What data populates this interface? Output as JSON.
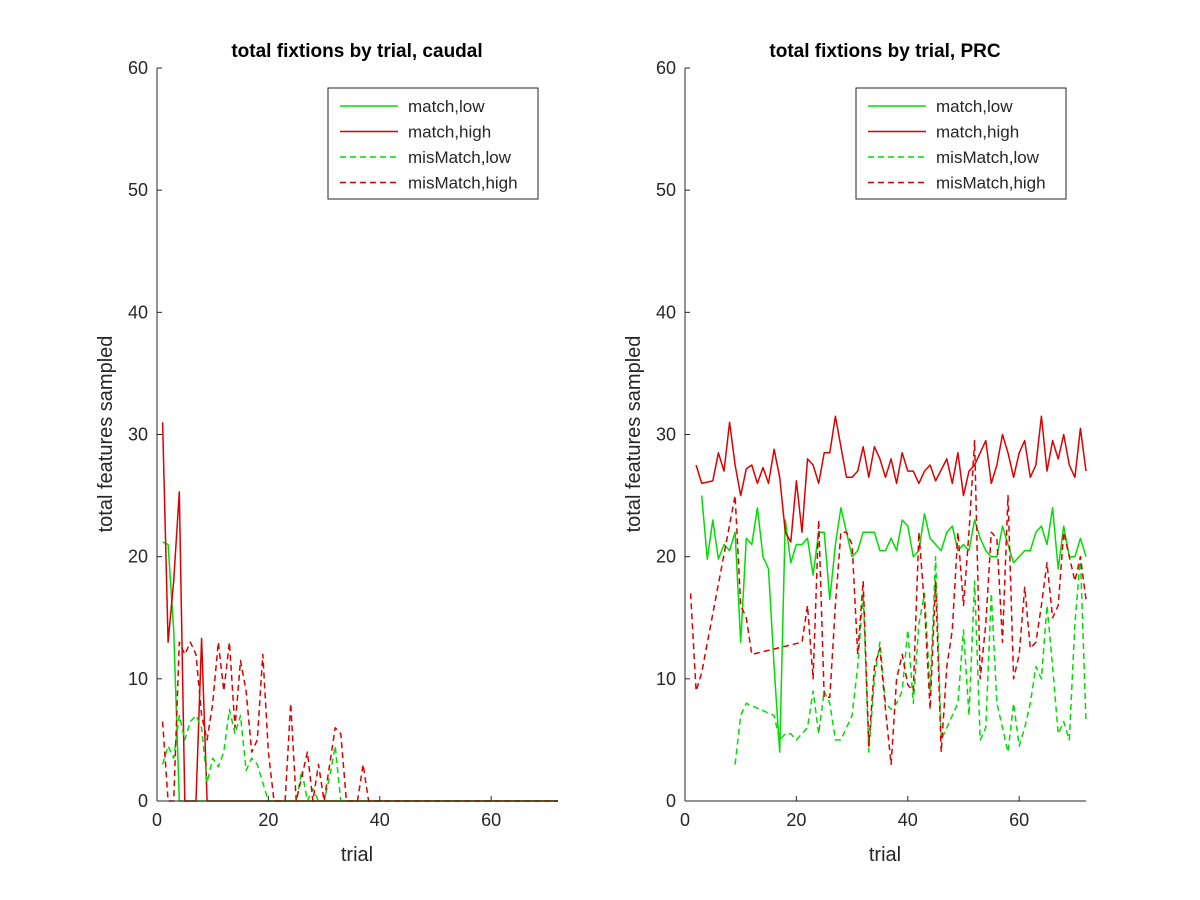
{
  "chart_data": [
    {
      "type": "line",
      "title": "total fixtions by trial, caudal",
      "xlabel": "trial",
      "ylabel": "total features sampled",
      "xlim": [
        0,
        72
      ],
      "ylim": [
        0,
        60
      ],
      "xticks": [
        0,
        20,
        40,
        60
      ],
      "yticks": [
        0,
        10,
        20,
        30,
        40,
        50,
        60
      ],
      "legend_position": "top-right",
      "series": [
        {
          "name": "match,low",
          "color": "#00dd00",
          "style": "solid",
          "x": [
            1,
            2,
            3,
            4,
            5,
            6,
            7,
            8,
            9,
            10,
            12,
            14,
            16,
            18,
            20,
            30,
            40,
            50,
            60,
            72
          ],
          "y": [
            21.2,
            21,
            14,
            0,
            0,
            0,
            0,
            0,
            0,
            0,
            0,
            0,
            0,
            0,
            0,
            0,
            0,
            0,
            0,
            0
          ]
        },
        {
          "name": "match,high",
          "color": "#dd0000",
          "style": "solid",
          "x": [
            1,
            2,
            3,
            4,
            5,
            6,
            7,
            8,
            9,
            10,
            12,
            14,
            16,
            18,
            20,
            30,
            40,
            50,
            60,
            72
          ],
          "y": [
            31,
            13,
            18,
            25.3,
            0,
            0,
            0,
            13.3,
            0,
            0,
            0,
            0,
            0,
            0,
            0,
            0,
            0,
            0,
            0,
            0
          ]
        },
        {
          "name": "misMatch,low",
          "color": "#00dd00",
          "style": "dashed",
          "x": [
            1,
            2,
            3,
            4,
            5,
            6,
            7,
            8,
            9,
            10,
            11,
            12,
            13,
            14,
            15,
            16,
            17,
            18,
            19,
            20,
            21,
            22,
            23,
            24,
            25,
            26,
            27,
            28,
            29,
            30,
            31,
            32,
            33,
            34,
            35,
            36,
            37,
            38,
            40,
            50,
            60,
            72
          ],
          "y": [
            3,
            4.5,
            3.5,
            7,
            5,
            6.5,
            7,
            6,
            1.5,
            3.5,
            2.8,
            4,
            7.5,
            5.5,
            7,
            2.5,
            3.5,
            3,
            1.5,
            0,
            0,
            0,
            0,
            0,
            0,
            2.5,
            0,
            1,
            0,
            0,
            2,
            4.5,
            0,
            0,
            0,
            0,
            0,
            0,
            0,
            0,
            0,
            0
          ]
        },
        {
          "name": "misMatch,high",
          "color": "#dd0000",
          "style": "dashed",
          "x": [
            1,
            2,
            3,
            4,
            5,
            6,
            7,
            8,
            9,
            10,
            11,
            12,
            13,
            14,
            15,
            16,
            17,
            18,
            19,
            20,
            21,
            22,
            23,
            24,
            25,
            26,
            27,
            28,
            29,
            30,
            31,
            32,
            33,
            34,
            35,
            36,
            37,
            38,
            40,
            50,
            60,
            72
          ],
          "y": [
            6.5,
            0,
            0,
            13,
            12,
            13,
            12,
            7,
            5,
            8,
            13,
            9,
            13,
            6,
            11.5,
            9,
            4,
            5,
            12,
            4,
            0,
            0,
            0,
            8,
            0,
            2,
            4,
            0,
            3,
            0,
            3,
            6,
            5.5,
            0,
            0,
            0,
            3,
            0,
            0,
            0,
            0,
            0
          ]
        }
      ]
    },
    {
      "type": "line",
      "title": "total fixtions by trial, PRC",
      "xlabel": "trial",
      "ylabel": "total features sampled",
      "xlim": [
        0,
        72
      ],
      "ylim": [
        0,
        60
      ],
      "xticks": [
        0,
        20,
        40,
        60
      ],
      "yticks": [
        0,
        10,
        20,
        30,
        40,
        50,
        60
      ],
      "legend_position": "top-right",
      "series": [
        {
          "name": "match,low",
          "color": "#00dd00",
          "style": "solid",
          "x": [
            3,
            4,
            5,
            6,
            7,
            8,
            9,
            10,
            11,
            12,
            13,
            14,
            15,
            16,
            17,
            18,
            19,
            20,
            21,
            22,
            23,
            24,
            25,
            26,
            27,
            28,
            29,
            30,
            31,
            32,
            33,
            34,
            35,
            36,
            37,
            38,
            39,
            40,
            41,
            42,
            43,
            44,
            45,
            46,
            47,
            48,
            49,
            50,
            51,
            52,
            53,
            54,
            55,
            56,
            57,
            58,
            59,
            61,
            62,
            63,
            64,
            65,
            66,
            67,
            68,
            69,
            70,
            71,
            72
          ],
          "y": [
            25,
            19.8,
            23,
            19.8,
            21,
            20.5,
            22,
            13,
            21.5,
            21,
            24,
            20,
            19,
            11,
            4,
            23,
            19.5,
            21,
            21,
            21.5,
            18.5,
            22,
            22,
            16.5,
            21,
            24,
            22,
            20,
            20.5,
            22,
            22,
            22,
            20.5,
            20.5,
            21.5,
            20.5,
            23,
            22.5,
            20,
            20.5,
            23.5,
            21.5,
            21,
            20.5,
            22,
            22.5,
            20.5,
            21,
            20.5,
            23,
            21.5,
            20.5,
            20,
            20,
            22.5,
            21,
            19.5,
            20.5,
            20.5,
            22,
            22.5,
            21,
            24,
            19,
            22.5,
            20,
            20,
            21.5,
            20
          ]
        },
        {
          "name": "match,high",
          "color": "#dd0000",
          "style": "solid",
          "x": [
            2,
            3,
            5,
            6,
            7,
            8,
            9,
            10,
            11,
            12,
            13,
            14,
            15,
            16,
            17,
            18,
            19,
            20,
            21,
            22,
            23,
            24,
            25,
            26,
            27,
            28,
            29,
            30,
            31,
            32,
            33,
            34,
            35,
            36,
            37,
            38,
            39,
            40,
            41,
            42,
            43,
            44,
            45,
            47,
            48,
            49,
            50,
            51,
            52,
            54,
            55,
            56,
            57,
            58,
            59,
            60,
            61,
            62,
            63,
            64,
            65,
            66,
            67,
            68,
            69,
            70,
            71,
            72
          ],
          "y": [
            27.5,
            26,
            26.2,
            28.5,
            27,
            31,
            27.5,
            25,
            27.2,
            27.5,
            26,
            27.3,
            26,
            28.8,
            26.5,
            22,
            21.2,
            26.2,
            22,
            28,
            27.5,
            26,
            28.5,
            28.5,
            31.5,
            29,
            26.5,
            26.5,
            27,
            29,
            26.5,
            29,
            28,
            26.5,
            28,
            26,
            28.5,
            27,
            27,
            26,
            27,
            27.5,
            26.2,
            28,
            26,
            28.5,
            25,
            27,
            27.5,
            29.5,
            26,
            27.5,
            30,
            28.5,
            26.5,
            28.5,
            29.5,
            26.5,
            27.5,
            31.5,
            27,
            29.5,
            28,
            30,
            27.5,
            26.5,
            30.5,
            27
          ]
        },
        {
          "name": "misMatch,low",
          "color": "#00dd00",
          "style": "dashed",
          "x": [
            9,
            10,
            11,
            16,
            17,
            18,
            19,
            20,
            22,
            23,
            24,
            25,
            26,
            27,
            28,
            29,
            30,
            31,
            32,
            33,
            34,
            35,
            36,
            37,
            38,
            39,
            40,
            41,
            42,
            43,
            44,
            45,
            46,
            47,
            48,
            49,
            50,
            51,
            52,
            53,
            54,
            55,
            56,
            57,
            58,
            59,
            60,
            61,
            62,
            63,
            64,
            65,
            66,
            67,
            68,
            69,
            70,
            71,
            72
          ],
          "y": [
            3,
            7,
            8,
            7,
            5,
            5.5,
            5.5,
            5,
            6,
            9,
            5.5,
            9,
            8,
            5,
            5,
            6,
            7,
            11,
            17,
            4,
            10,
            13,
            8,
            7.5,
            8,
            9,
            14,
            8,
            14.5,
            17,
            9,
            20,
            5,
            6,
            7,
            8,
            14,
            7,
            18,
            5,
            6,
            17,
            8,
            6,
            4,
            8,
            4.5,
            6,
            8,
            11,
            10,
            16,
            11,
            5.5,
            6.5,
            5,
            14.5,
            20,
            6.5
          ]
        },
        {
          "name": "misMatch,high",
          "color": "#dd0000",
          "style": "dashed",
          "x": [
            1,
            2,
            3,
            9,
            10,
            11,
            12,
            21,
            22,
            23,
            24,
            25,
            26,
            27,
            28,
            29,
            30,
            31,
            32,
            33,
            34,
            35,
            36,
            37,
            38,
            39,
            40,
            41,
            42,
            43,
            44,
            45,
            46,
            47,
            48,
            49,
            50,
            51,
            52,
            53,
            54,
            55,
            56,
            57,
            58,
            59,
            60,
            61,
            62,
            63,
            64,
            65,
            66,
            67,
            68,
            69,
            70,
            71,
            72
          ],
          "y": [
            17,
            9,
            10.5,
            25,
            16,
            15,
            12,
            13,
            16,
            10,
            23,
            8.5,
            8.5,
            16,
            22,
            22,
            21,
            12,
            18,
            4.5,
            11,
            12.5,
            7.5,
            3,
            10,
            12,
            9.5,
            9,
            22,
            16,
            7.5,
            18,
            4,
            11,
            14,
            22,
            16,
            22,
            29.5,
            10,
            14.5,
            22,
            21.5,
            13,
            25,
            10,
            12,
            17.5,
            12.5,
            13,
            16,
            19.5,
            15,
            16,
            22,
            20,
            18,
            20,
            16.5
          ]
        }
      ]
    }
  ]
}
